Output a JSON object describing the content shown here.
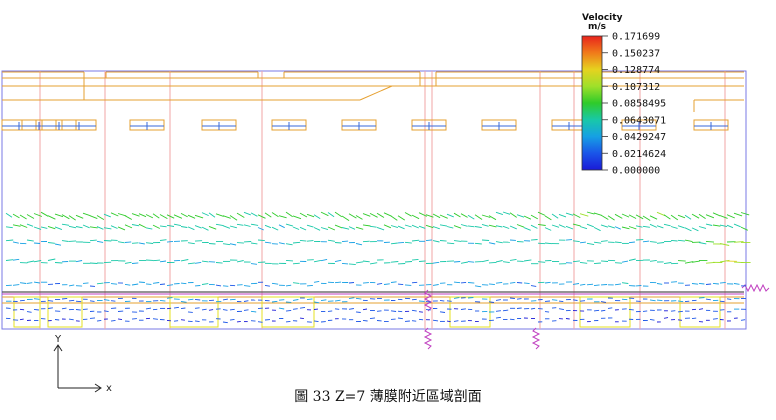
{
  "legend": {
    "title": "Velocity",
    "unit": "m/s",
    "levels": [
      "0.171699",
      "0.150237",
      "0.128774",
      "0.107312",
      "0.0858495",
      "0.0643071",
      "0.0429247",
      "0.0214624",
      "0.000000"
    ],
    "colors": [
      "#e8231c",
      "#f07a1a",
      "#e6d21f",
      "#9fe02a",
      "#2fcb2a",
      "#18c8a8",
      "#16a0e4",
      "#1a55e8",
      "#1a1ad8"
    ]
  },
  "axes": {
    "y_label": "Y",
    "x_label": "x"
  },
  "caption": "圖 33 Z=7 薄膜附近區域剖面",
  "colors": {
    "structure": "#e6a030",
    "grid": "#f2a6a6",
    "domain": "#7a7ae6",
    "membrane": "#c040c0",
    "dark_line": "#555555"
  }
}
